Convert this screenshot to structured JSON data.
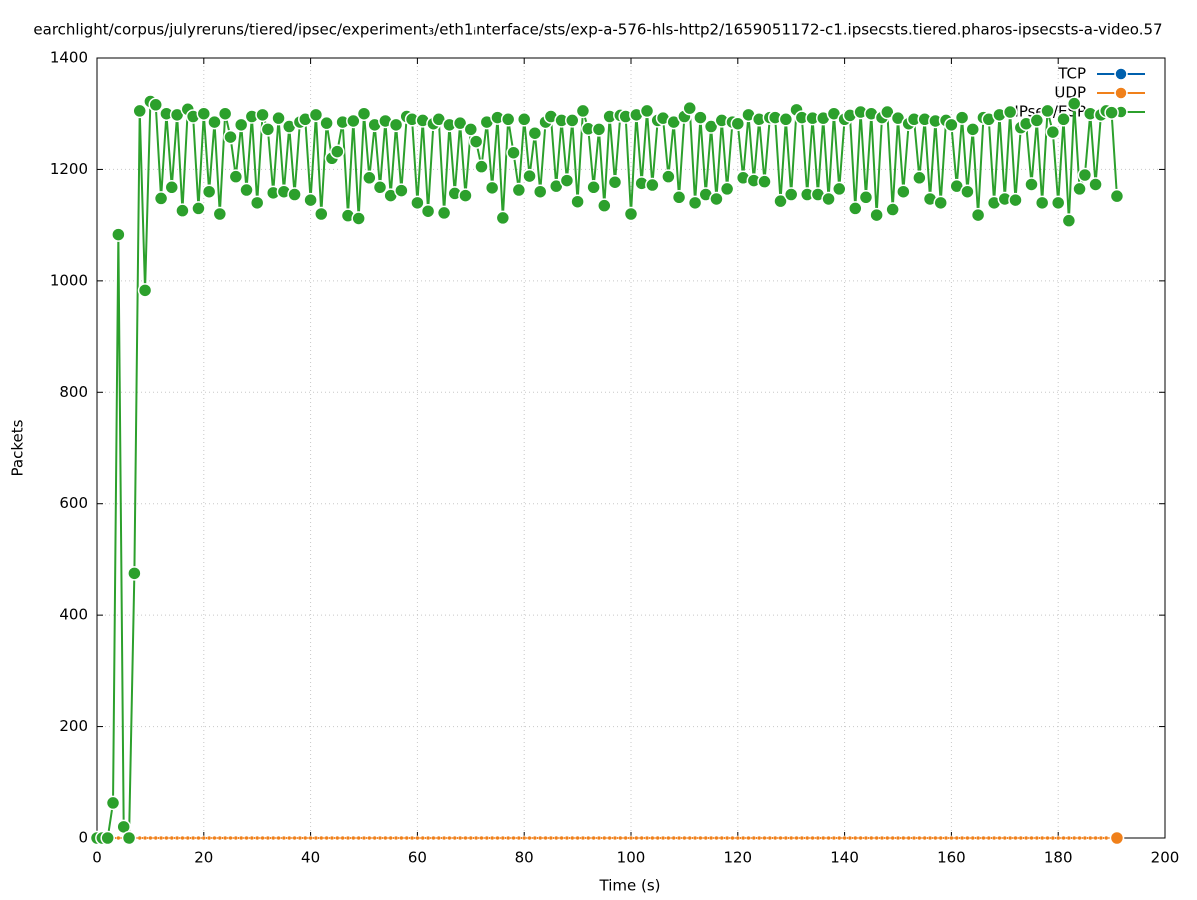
{
  "chart_data": {
    "type": "line",
    "title": "earchlight/corpus/julyreruns/tiered/ipsec/experiment₃/eth1ᵢnterface/sts/exp-a-576-hls-http2/1659051172-c1.ipsecsts.tiered.pharos-ipsecsts-a-video.57",
    "x_label": "Time (s)",
    "y_label": "Packets",
    "xlim": [
      0,
      200
    ],
    "xticks": [
      0,
      20,
      40,
      60,
      80,
      100,
      120,
      140,
      160,
      180,
      200
    ],
    "ylim": [
      0,
      1400
    ],
    "yticks": [
      0,
      200,
      400,
      600,
      800,
      1000,
      1200,
      1400
    ],
    "grid": true,
    "legend": "top-right",
    "x": [
      0,
      1,
      2,
      3,
      4,
      5,
      6,
      7,
      8,
      9,
      10,
      11,
      12,
      13,
      14,
      15,
      16,
      17,
      18,
      19,
      20,
      21,
      22,
      23,
      24,
      25,
      26,
      27,
      28,
      29,
      30,
      31,
      32,
      33,
      34,
      35,
      36,
      37,
      38,
      39,
      40,
      41,
      42,
      43,
      44,
      45,
      46,
      47,
      48,
      49,
      50,
      51,
      52,
      53,
      54,
      55,
      56,
      57,
      58,
      59,
      60,
      61,
      62,
      63,
      64,
      65,
      66,
      67,
      68,
      69,
      70,
      71,
      72,
      73,
      74,
      75,
      76,
      77,
      78,
      79,
      80,
      81,
      82,
      83,
      84,
      85,
      86,
      87,
      88,
      89,
      90,
      91,
      92,
      93,
      94,
      95,
      96,
      97,
      98,
      99,
      100,
      101,
      102,
      103,
      104,
      105,
      106,
      107,
      108,
      109,
      110,
      111,
      112,
      113,
      114,
      115,
      116,
      117,
      118,
      119,
      120,
      121,
      122,
      123,
      124,
      125,
      126,
      127,
      128,
      129,
      130,
      131,
      132,
      133,
      134,
      135,
      136,
      137,
      138,
      139,
      140,
      141,
      142,
      143,
      144,
      145,
      146,
      147,
      148,
      149,
      150,
      151,
      152,
      153,
      154,
      155,
      156,
      157,
      158,
      159,
      160,
      161,
      162,
      163,
      164,
      165,
      166,
      167,
      168,
      169,
      170,
      171,
      172,
      173,
      174,
      175,
      176,
      177,
      178,
      179,
      180,
      181,
      182,
      183,
      184,
      185,
      186,
      187,
      188,
      189,
      190,
      191
    ],
    "series": [
      {
        "name": "TCP",
        "color": "#0060ad",
        "values": [
          0,
          0,
          0,
          0,
          0,
          0,
          0,
          0,
          0,
          0,
          0,
          0,
          0,
          0,
          0,
          0,
          0,
          0,
          0,
          0,
          0,
          0,
          0,
          0,
          0,
          0,
          0,
          0,
          0,
          0,
          0,
          0,
          0,
          0,
          0,
          0,
          0,
          0,
          0,
          0,
          0,
          0,
          0,
          0,
          0,
          0,
          0,
          0,
          0,
          0,
          0,
          0,
          0,
          0,
          0,
          0,
          0,
          0,
          0,
          0,
          0,
          0,
          0,
          0,
          0,
          0,
          0,
          0,
          0,
          0,
          0,
          0,
          0,
          0,
          0,
          0,
          0,
          0,
          0,
          0,
          0,
          0,
          0,
          0,
          0,
          0,
          0,
          0,
          0,
          0,
          0,
          0,
          0,
          0,
          0,
          0,
          0,
          0,
          0,
          0,
          0,
          0,
          0,
          0,
          0,
          0,
          0,
          0,
          0,
          0,
          0,
          0,
          0,
          0,
          0,
          0,
          0,
          0,
          0,
          0,
          0,
          0,
          0,
          0,
          0,
          0,
          0,
          0,
          0,
          0,
          0,
          0,
          0,
          0,
          0,
          0,
          0,
          0,
          0,
          0,
          0,
          0,
          0,
          0,
          0,
          0,
          0,
          0,
          0,
          0,
          0,
          0,
          0,
          0,
          0,
          0,
          0,
          0,
          0,
          0,
          0,
          0,
          0,
          0,
          0,
          0,
          0,
          0,
          0,
          0,
          0,
          0,
          0,
          0,
          0,
          0,
          0,
          0,
          0,
          0,
          0,
          0,
          0,
          0,
          0,
          0,
          0,
          0,
          0,
          0,
          0,
          0
        ]
      },
      {
        "name": "UDP",
        "color": "#f0801a",
        "values": [
          0,
          0,
          0,
          0,
          0,
          0,
          0,
          0,
          0,
          0,
          0,
          0,
          0,
          0,
          0,
          0,
          0,
          0,
          0,
          0,
          0,
          0,
          0,
          0,
          0,
          0,
          0,
          0,
          0,
          0,
          0,
          0,
          0,
          0,
          0,
          0,
          0,
          0,
          0,
          0,
          0,
          0,
          0,
          0,
          0,
          0,
          0,
          0,
          0,
          0,
          0,
          0,
          0,
          0,
          0,
          0,
          0,
          0,
          0,
          0,
          0,
          0,
          0,
          0,
          0,
          0,
          0,
          0,
          0,
          0,
          0,
          0,
          0,
          0,
          0,
          0,
          0,
          0,
          0,
          0,
          0,
          0,
          0,
          0,
          0,
          0,
          0,
          0,
          0,
          0,
          0,
          0,
          0,
          0,
          0,
          0,
          0,
          0,
          0,
          0,
          0,
          0,
          0,
          0,
          0,
          0,
          0,
          0,
          0,
          0,
          0,
          0,
          0,
          0,
          0,
          0,
          0,
          0,
          0,
          0,
          0,
          0,
          0,
          0,
          0,
          0,
          0,
          0,
          0,
          0,
          0,
          0,
          0,
          0,
          0,
          0,
          0,
          0,
          0,
          0,
          0,
          0,
          0,
          0,
          0,
          0,
          0,
          0,
          0,
          0,
          0,
          0,
          0,
          0,
          0,
          0,
          0,
          0,
          0,
          0,
          0,
          0,
          0,
          0,
          0,
          0,
          0,
          0,
          0,
          0,
          0,
          0,
          0,
          0,
          0,
          0,
          0,
          0,
          0,
          0,
          0,
          0,
          0,
          0,
          0,
          0,
          0,
          0,
          0,
          0,
          0,
          0
        ]
      },
      {
        "name": "IPsec/ESP",
        "color": "#2ca02c",
        "values": [
          0,
          0,
          0,
          63,
          1083,
          20,
          0,
          475,
          1305,
          983,
          1322,
          1316,
          1148,
          1300,
          1168,
          1298,
          1126,
          1308,
          1295,
          1130,
          1300,
          1160,
          1285,
          1120,
          1300,
          1258,
          1187,
          1280,
          1163,
          1295,
          1140,
          1298,
          1272,
          1158,
          1292,
          1160,
          1277,
          1155,
          1285,
          1290,
          1145,
          1298,
          1120,
          1283,
          1220,
          1232,
          1285,
          1117,
          1287,
          1112,
          1300,
          1185,
          1280,
          1168,
          1287,
          1153,
          1280,
          1162,
          1295,
          1290,
          1140,
          1288,
          1125,
          1282,
          1290,
          1122,
          1280,
          1157,
          1283,
          1153,
          1272,
          1250,
          1205,
          1285,
          1167,
          1293,
          1113,
          1290,
          1230,
          1163,
          1290,
          1188,
          1265,
          1160,
          1285,
          1295,
          1170,
          1288,
          1180,
          1288,
          1142,
          1305,
          1273,
          1168,
          1272,
          1135,
          1295,
          1177,
          1297,
          1295,
          1120,
          1298,
          1175,
          1305,
          1172,
          1288,
          1292,
          1187,
          1285,
          1150,
          1295,
          1310,
          1140,
          1293,
          1155,
          1277,
          1147,
          1288,
          1165,
          1285,
          1282,
          1185,
          1298,
          1180,
          1290,
          1178,
          1293,
          1293,
          1143,
          1290,
          1155,
          1307,
          1293,
          1155,
          1292,
          1155,
          1292,
          1147,
          1300,
          1165,
          1290,
          1297,
          1130,
          1303,
          1150,
          1300,
          1118,
          1293,
          1303,
          1128,
          1292,
          1160,
          1282,
          1290,
          1185,
          1290,
          1147,
          1287,
          1140,
          1288,
          1280,
          1170,
          1293,
          1160,
          1272,
          1118,
          1293,
          1290,
          1140,
          1298,
          1147,
          1303,
          1145,
          1275,
          1282,
          1173,
          1288,
          1140,
          1305,
          1267,
          1140,
          1290,
          1108,
          1318,
          1165,
          1190,
          1300,
          1173,
          1298,
          1305,
          1302,
          1152
        ]
      }
    ]
  }
}
